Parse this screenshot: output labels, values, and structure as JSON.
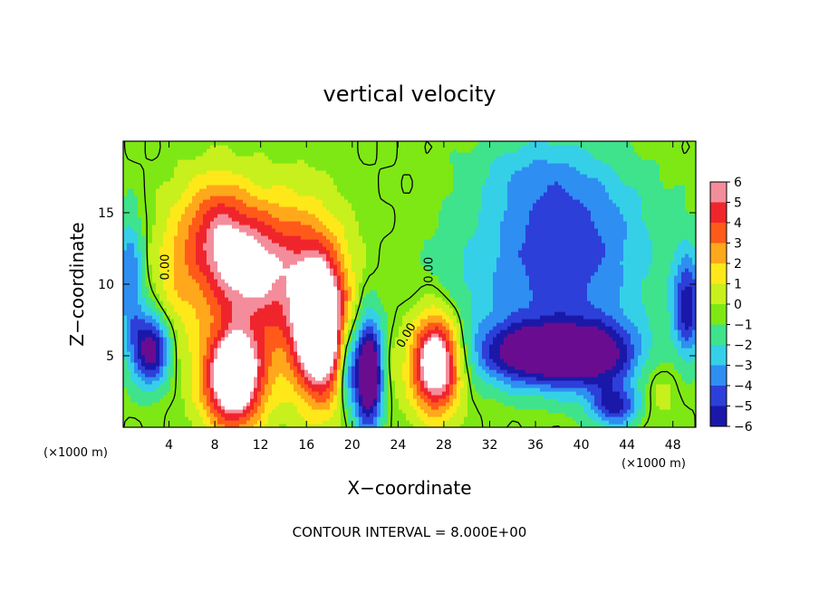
{
  "chart_data": {
    "type": "heatmap",
    "title": "vertical velocity",
    "xlabel": "X−coordinate",
    "ylabel": "Z−coordinate",
    "x_unit": "(×1000 m)",
    "x_unit_right": "(×1000 m)",
    "xlim": [
      0,
      50
    ],
    "ylim": [
      0,
      20
    ],
    "x_ticks": [
      4,
      8,
      12,
      16,
      20,
      24,
      28,
      32,
      36,
      40,
      44,
      48
    ],
    "y_ticks": [
      5,
      10,
      15
    ],
    "colorbar": {
      "range": [
        -6,
        6
      ],
      "levels": [
        6,
        5,
        4,
        3,
        2,
        1,
        0,
        -1,
        -2,
        -3,
        -4,
        -5,
        -6
      ],
      "labels": [
        "6",
        "5",
        "4",
        "3",
        "2",
        "1",
        "0",
        "−1",
        "−2",
        "−3",
        "−4",
        "−5",
        "−6"
      ]
    },
    "contour_labels": [
      "0.00",
      "0.00",
      "0.00"
    ],
    "footer": "CONTOUR INTERVAL = 8.000E+00",
    "features": [
      {
        "x": 2.4,
        "z": 5.5,
        "sx": 1.2,
        "sz": 1.8,
        "w": -6.5
      },
      {
        "x": 0.6,
        "z": 10.5,
        "sx": 0.8,
        "sz": 3.0,
        "w": -3.5
      },
      {
        "x": 4.5,
        "z": 10.0,
        "sx": 1.5,
        "sz": 4.0,
        "w": 1.5
      },
      {
        "x": 9.6,
        "z": 3.4,
        "sx": 1.8,
        "sz": 2.4,
        "w": 9.0
      },
      {
        "x": 17.2,
        "z": 7.0,
        "sx": 1.6,
        "sz": 3.4,
        "w": 10.0
      },
      {
        "x": 10.0,
        "z": 11.5,
        "sx": 3.0,
        "sz": 2.8,
        "w": 4.5
      },
      {
        "x": 8.0,
        "z": 14.5,
        "sx": 2.0,
        "sz": 2.5,
        "w": 3.0
      },
      {
        "x": 13.0,
        "z": 9.0,
        "sx": 3.5,
        "sz": 4.0,
        "w": 3.0
      },
      {
        "x": 15.0,
        "z": 13.0,
        "sx": 3.0,
        "sz": 3.0,
        "w": 1.5
      },
      {
        "x": 21.4,
        "z": 3.8,
        "sx": 0.9,
        "sz": 2.6,
        "w": -9.0
      },
      {
        "x": 19.5,
        "z": 4.5,
        "sx": 0.6,
        "sz": 2.0,
        "w": -3.5
      },
      {
        "x": 23.0,
        "z": 4.0,
        "sx": 0.8,
        "sz": 2.0,
        "w": 1.0
      },
      {
        "x": 27.3,
        "z": 4.6,
        "sx": 1.5,
        "sz": 2.4,
        "w": 9.0
      },
      {
        "x": 35.8,
        "z": 5.2,
        "sx": 3.5,
        "sz": 1.6,
        "w": -6.5
      },
      {
        "x": 41.5,
        "z": 5.0,
        "sx": 3.0,
        "sz": 1.8,
        "w": -5.0
      },
      {
        "x": 38.0,
        "z": 10.5,
        "sx": 5.5,
        "sz": 3.5,
        "w": -3.2
      },
      {
        "x": 39.0,
        "z": 15.0,
        "sx": 5.0,
        "sz": 3.0,
        "w": -2.2
      },
      {
        "x": 43.0,
        "z": 1.5,
        "sx": 1.5,
        "sz": 1.0,
        "w": -4.5
      },
      {
        "x": 49.3,
        "z": 8.5,
        "sx": 0.9,
        "sz": 2.5,
        "w": -5.0
      },
      {
        "x": 46.5,
        "z": 3.0,
        "sx": 1.5,
        "sz": 2.0,
        "w": 1.2
      },
      {
        "x": 36.0,
        "z": 18.0,
        "sx": 4.0,
        "sz": 2.0,
        "w": -1.4
      },
      {
        "x": 29.0,
        "z": 8.5,
        "sx": 3.0,
        "sz": 3.0,
        "w": -0.6
      }
    ]
  }
}
